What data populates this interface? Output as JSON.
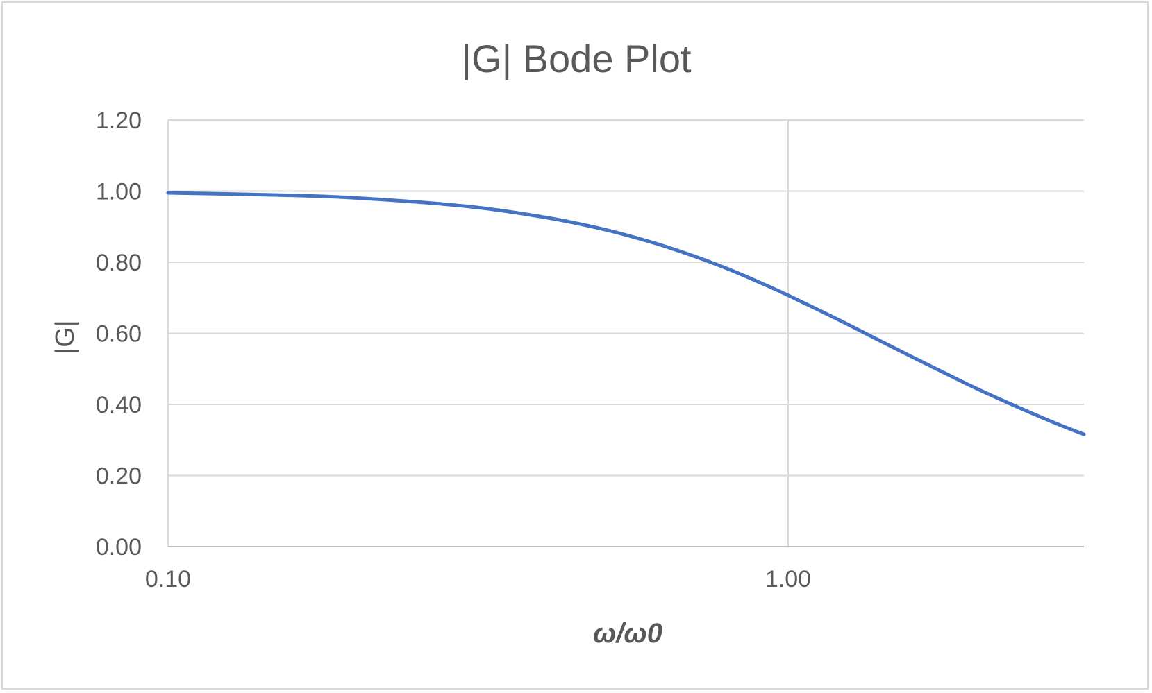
{
  "chart_data": {
    "type": "line",
    "title": "|G| Bode Plot",
    "xlabel": "ω/ω0",
    "ylabel": "|G|",
    "x_scale": "log",
    "xlim": [
      0.1,
      3.0
    ],
    "ylim": [
      0,
      1.2
    ],
    "x_ticks": [
      "0.10",
      "1.00"
    ],
    "y_ticks": [
      "0.00",
      "0.20",
      "0.40",
      "0.60",
      "0.80",
      "1.00",
      "1.20"
    ],
    "grid": true,
    "legend": "none",
    "series": [
      {
        "color": "#4472c4",
        "x": [
          0.1,
          0.15,
          0.2,
          0.3,
          0.4,
          0.5,
          0.6,
          0.7,
          0.8,
          0.9,
          1.0,
          1.2,
          1.4,
          1.6,
          1.8,
          2.0,
          2.2,
          2.4,
          2.6,
          2.8,
          3.0
        ],
        "y": [
          0.995,
          0.989,
          0.981,
          0.958,
          0.928,
          0.894,
          0.857,
          0.819,
          0.781,
          0.743,
          0.707,
          0.64,
          0.581,
          0.53,
          0.486,
          0.447,
          0.414,
          0.385,
          0.359,
          0.336,
          0.316
        ]
      }
    ]
  }
}
